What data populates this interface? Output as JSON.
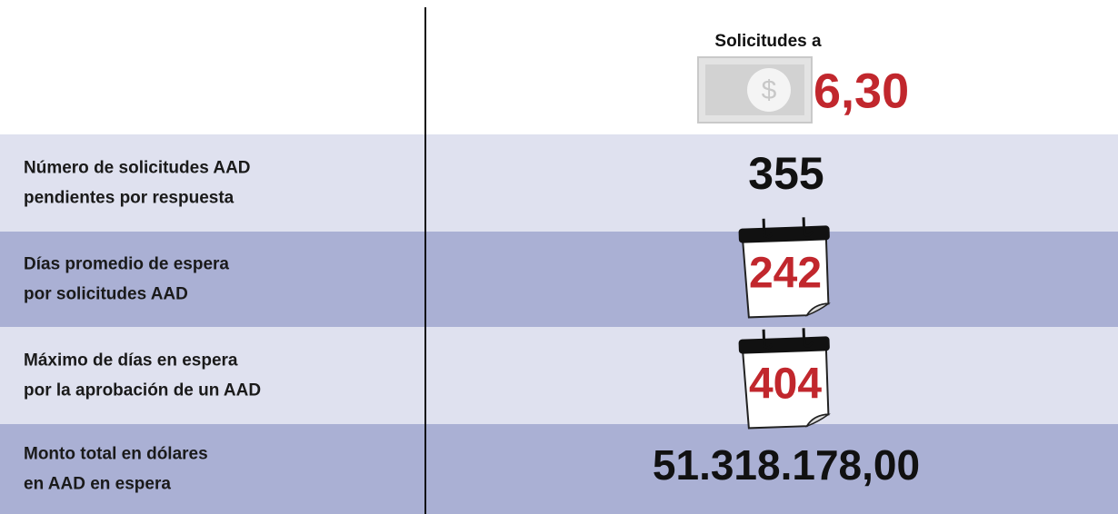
{
  "header": {
    "title": "Solicitudes a",
    "rate": "6,30"
  },
  "rows": [
    {
      "label": [
        "Número de solicitudes AAD",
        "pendientes por respuesta"
      ],
      "value": "355"
    },
    {
      "label": [
        "Días promedio de espera",
        "por solicitudes AAD"
      ],
      "value": "242"
    },
    {
      "label": [
        "Máximo de días en espera",
        "por la aprobación de un AAD"
      ],
      "value": "404"
    },
    {
      "label": [
        "Monto total en dólares",
        "en AAD en espera"
      ],
      "value": "51.318.178,00"
    }
  ]
}
